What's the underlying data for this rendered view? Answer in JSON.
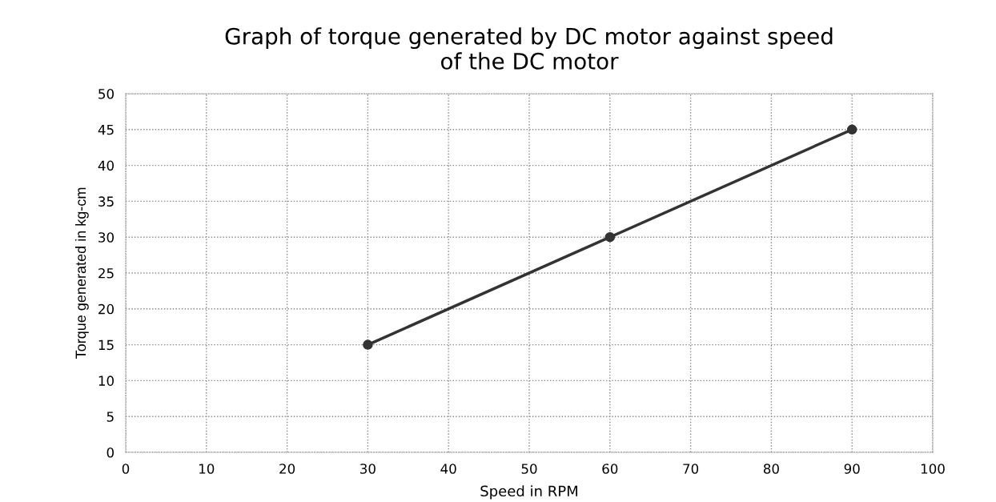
{
  "chart_data": {
    "type": "line",
    "title": "Graph of torque generated by DC motor against speed\nof the DC motor",
    "xlabel": "Speed in RPM",
    "ylabel": "Torque generated in kg-cm",
    "x": [
      30,
      60,
      90
    ],
    "series": [
      {
        "color": "#333333",
        "values": [
          15,
          30,
          45
        ]
      }
    ],
    "xlim": [
      0,
      100
    ],
    "xticks": [
      0,
      10,
      20,
      30,
      40,
      50,
      60,
      70,
      80,
      90,
      100
    ],
    "ylim": [
      0,
      50
    ],
    "yticks": [
      0,
      5,
      10,
      15,
      20,
      25,
      30,
      35,
      40,
      45,
      50
    ],
    "grid": true,
    "marker": "circle",
    "line_style": "solid"
  }
}
